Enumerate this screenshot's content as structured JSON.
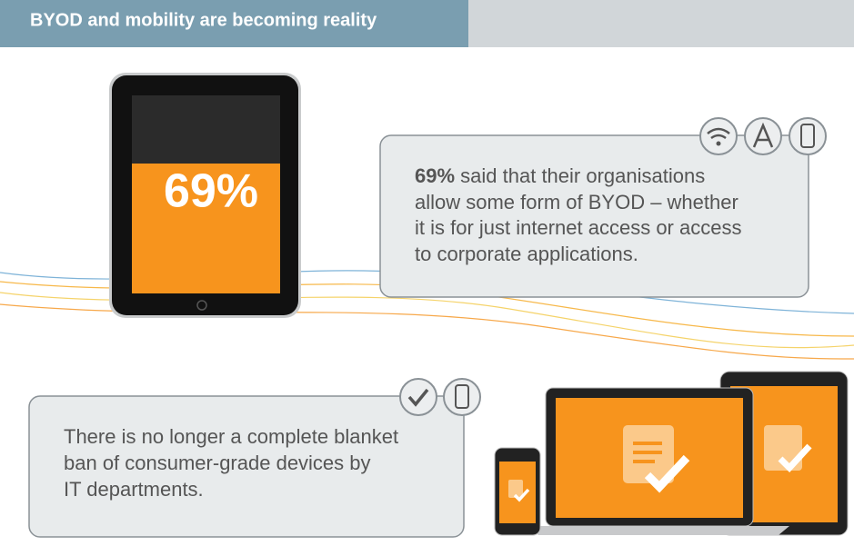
{
  "header": {
    "title": "BYOD and mobility are becoming reality"
  },
  "tablet": {
    "label": "69%"
  },
  "callout_1": {
    "highlight": "69%",
    "lines": [
      " said that their organisations",
      "allow some form of BYOD – whether",
      "it is for just internet access or access",
      "to corporate applications."
    ]
  },
  "callout_2": {
    "lines": [
      "There is no longer a complete blanket",
      "ban of consumer-grade devices by",
      "IT departments."
    ]
  }
}
